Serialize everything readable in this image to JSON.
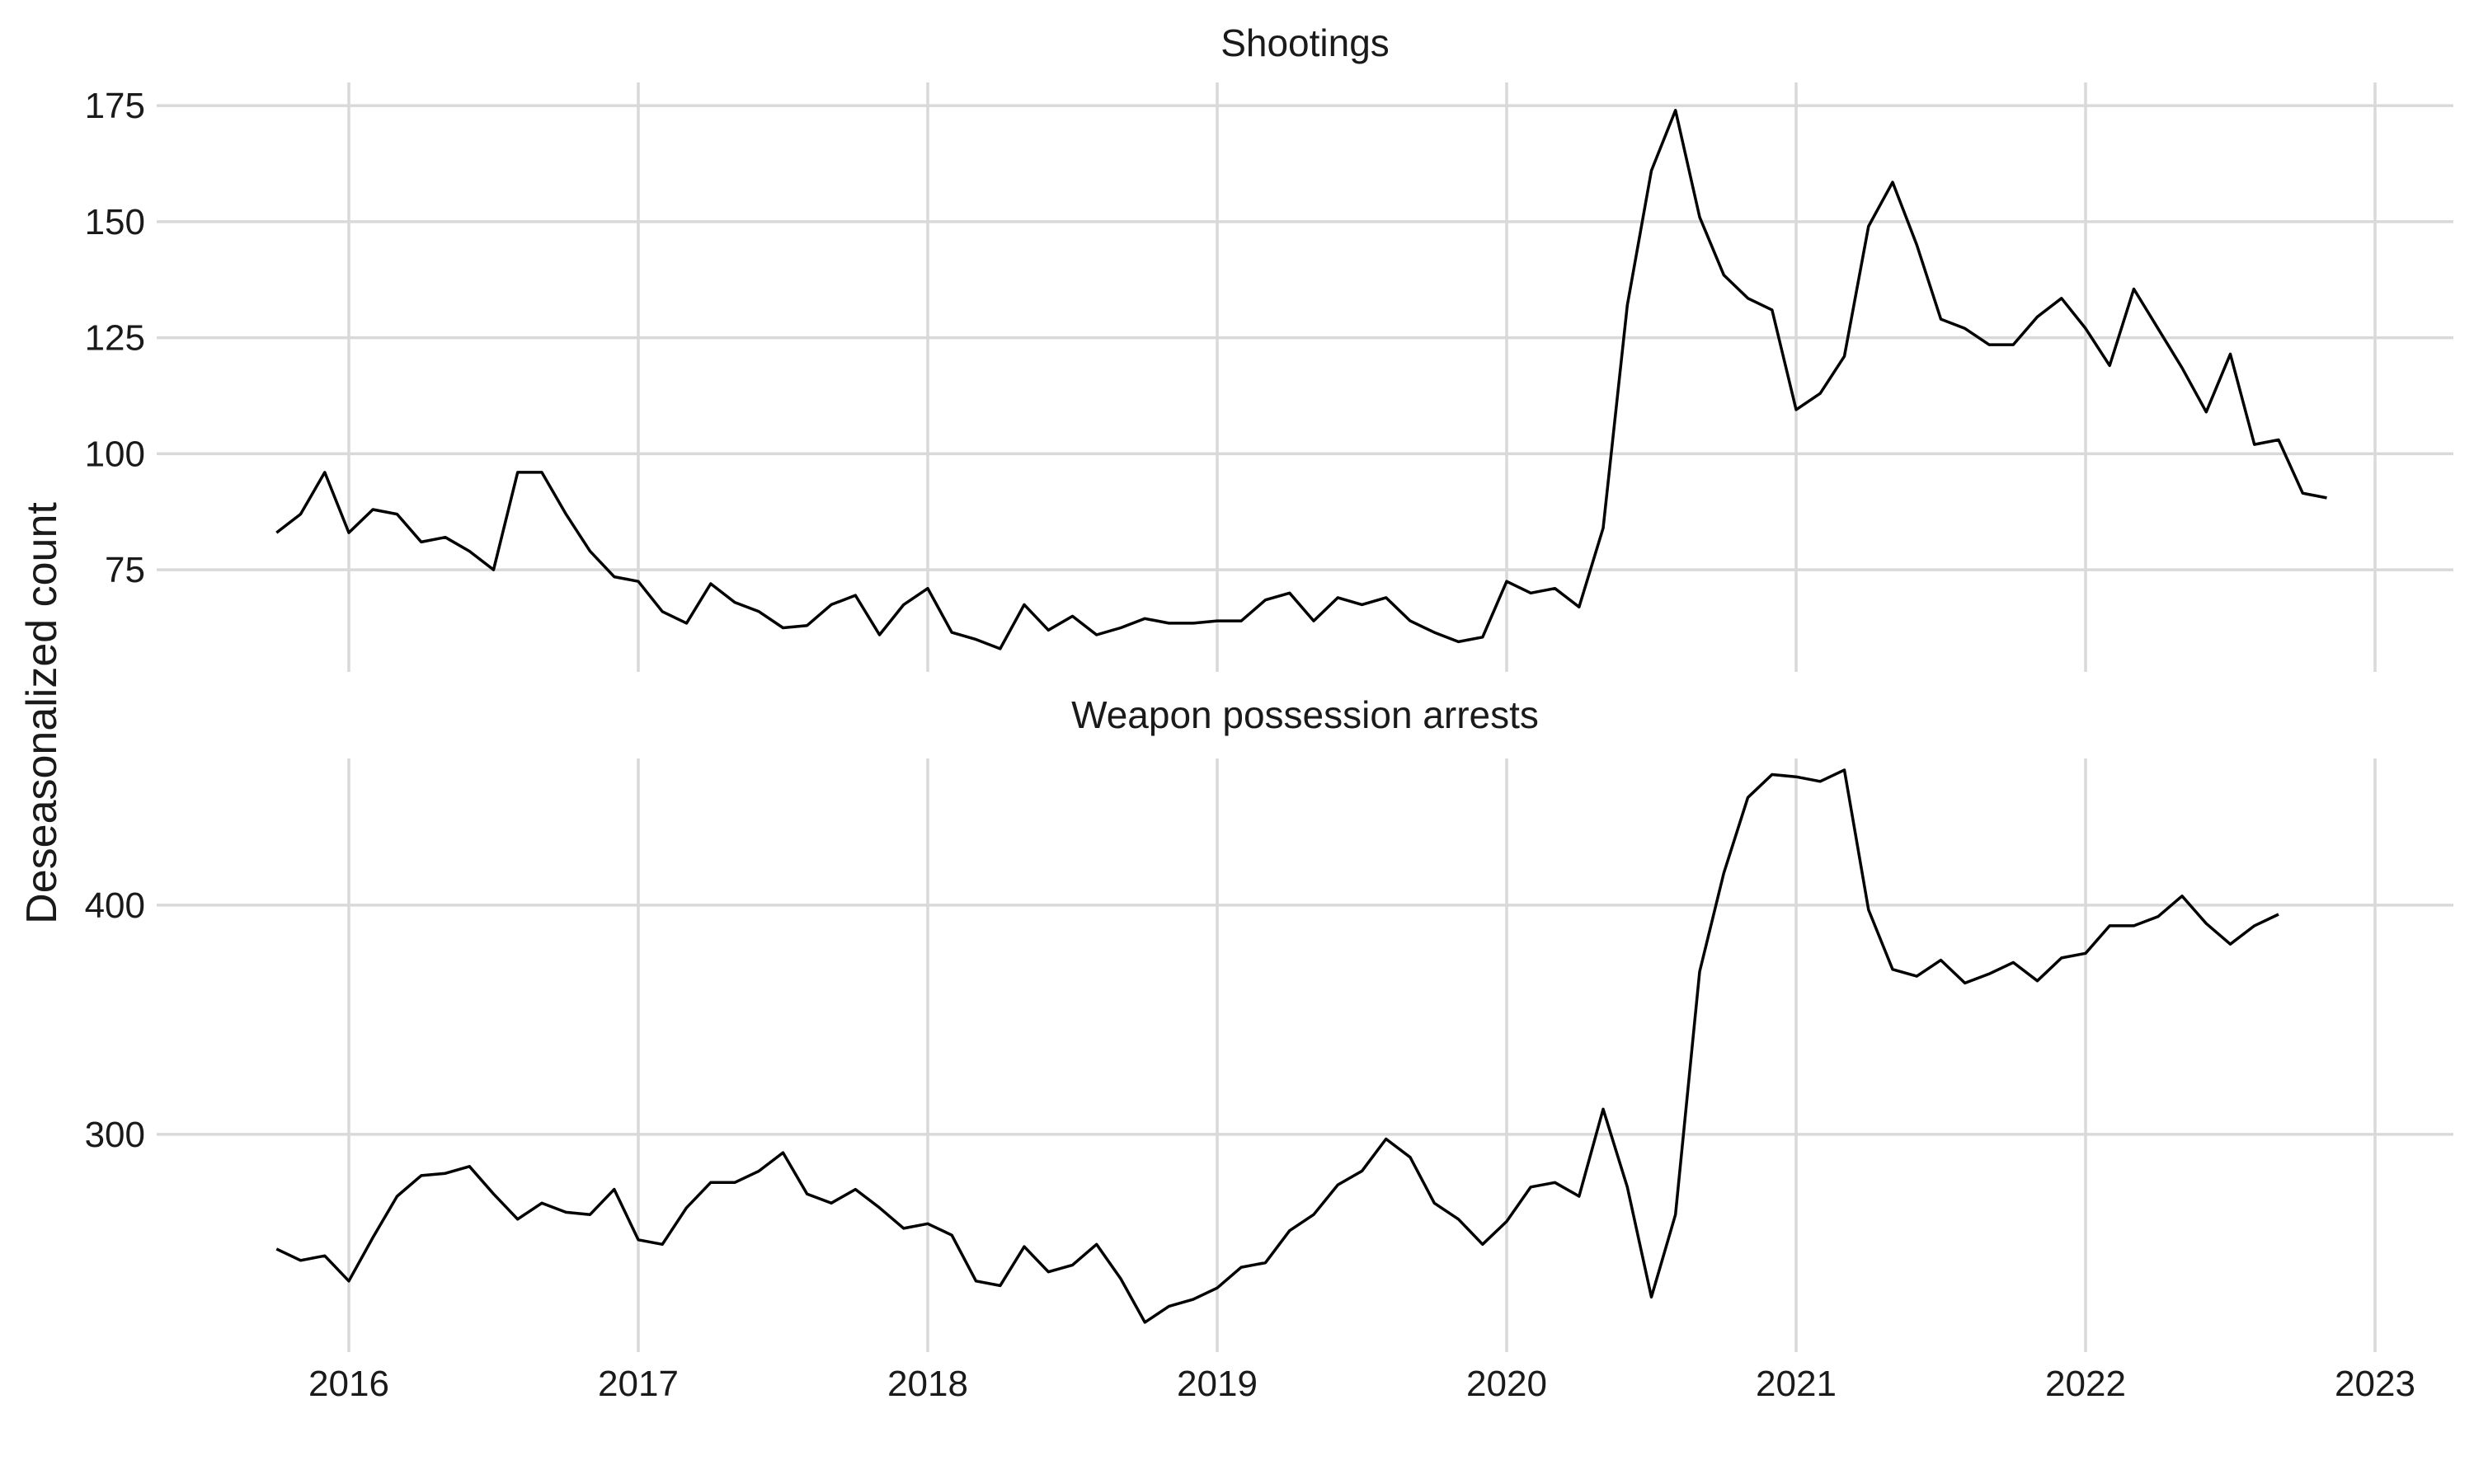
{
  "chart_data": {
    "type": "line",
    "ylabel": "Deseasonalized count",
    "x_ticks": [
      "2016",
      "2017",
      "2018",
      "2019",
      "2020",
      "2021",
      "2022",
      "2023"
    ],
    "grid": true,
    "panels": [
      {
        "title": "Shootings",
        "y_ticks": [
          75,
          100,
          125,
          150,
          175
        ],
        "ylim": [
          53,
          180
        ],
        "x_start": "2015-10",
        "values": [
          83,
          87,
          96,
          83,
          88,
          87,
          81,
          82,
          79,
          75,
          96,
          96,
          87,
          79,
          73.5,
          72.5,
          66,
          63.5,
          72,
          68,
          66,
          62.5,
          63,
          67.5,
          69.5,
          61,
          67.5,
          71,
          61.5,
          60,
          58,
          67.5,
          62,
          65,
          61,
          62.5,
          64.5,
          63.5,
          63.5,
          64,
          64,
          68.5,
          70,
          64,
          69,
          67.5,
          69,
          64,
          61.5,
          59.5,
          60.5,
          72.5,
          70,
          71,
          67,
          84,
          132,
          161,
          174,
          151,
          138.5,
          133.5,
          131,
          109.5,
          113,
          121,
          149,
          158.5,
          145,
          129,
          127,
          123.5,
          123.5,
          129.5,
          133.5,
          127,
          119,
          135.5,
          127,
          118.5,
          109,
          121.5,
          102,
          103,
          91.5,
          90.5
        ]
      },
      {
        "title": "Weapon possession arrests",
        "y_ticks": [
          300,
          400
        ],
        "ylim": [
          205,
          464
        ],
        "x_start": "2015-10",
        "values": [
          250,
          245,
          247,
          236,
          255,
          273,
          282,
          283,
          286,
          274,
          263,
          270,
          266,
          265,
          276,
          254,
          252,
          268,
          279,
          279,
          284,
          292,
          274,
          270,
          276,
          268,
          259,
          261,
          256,
          236,
          234,
          251,
          240,
          243,
          252,
          237,
          218,
          225,
          228,
          233,
          242,
          244,
          258,
          265,
          278,
          284,
          298,
          290,
          270,
          263,
          252,
          262,
          277,
          279,
          273,
          311,
          277,
          229,
          265,
          371,
          414,
          447,
          457,
          456,
          454,
          459,
          398,
          372,
          369,
          376,
          366,
          370,
          375,
          367,
          377,
          379,
          391,
          391,
          395,
          404,
          392,
          383,
          391,
          396
        ]
      }
    ]
  }
}
